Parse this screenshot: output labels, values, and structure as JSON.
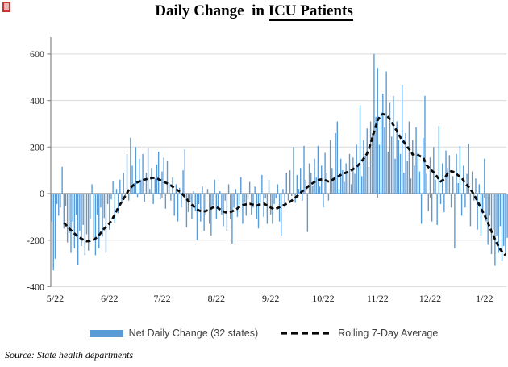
{
  "title": {
    "part1": "Daily Change  in ",
    "part2": "ICU Patients"
  },
  "source": "Source: State health departments",
  "legend": {
    "bars_label": "Net Daily Change (32 states)",
    "line_label": "Rolling 7-Day Average"
  },
  "colors": {
    "bar": "#5B9BD5",
    "line": "#0a0a0a",
    "gridline": "#D9D9D9",
    "axis": "#8e8e8e",
    "label_text": "#1a1a1a"
  },
  "chart_data": {
    "type": "bar",
    "title": "Daily Change in ICU Patients",
    "xlabel": "",
    "ylabel": "",
    "grid": true,
    "legend_position": "bottom",
    "ylim": [
      -400,
      660
    ],
    "yticks": [
      600,
      400,
      200,
      0,
      -200,
      -400
    ],
    "n_points": 260,
    "x_tick_labels": [
      "5/22",
      "6/22",
      "7/22",
      "8/22",
      "9/22",
      "10/22",
      "11/22",
      "12/22",
      "1/22"
    ],
    "x_tick_indices": [
      2,
      33,
      63,
      94,
      125,
      155,
      186,
      216,
      247
    ],
    "series": [
      {
        "name": "Net Daily Change (32 states)",
        "type": "bar",
        "values": [
          -120,
          -330,
          -280,
          -45,
          -95,
          -60,
          115,
          -150,
          -55,
          -210,
          -170,
          -255,
          -120,
          -235,
          -90,
          -305,
          -160,
          -225,
          -135,
          -265,
          -175,
          -245,
          -110,
          40,
          -205,
          -265,
          -90,
          -235,
          -60,
          -185,
          -105,
          -255,
          -45,
          -155,
          -25,
          55,
          -125,
          20,
          -85,
          60,
          -35,
          90,
          -15,
          170,
          -30,
          240,
          120,
          45,
          200,
          -15,
          150,
          60,
          170,
          -35,
          90,
          195,
          20,
          110,
          -45,
          65,
          125,
          180,
          -25,
          95,
          155,
          -65,
          140,
          45,
          -30,
          70,
          -95,
          40,
          -120,
          25,
          -60,
          100,
          190,
          -145,
          -80,
          -35,
          -110,
          10,
          -75,
          -200,
          -45,
          -120,
          30,
          -160,
          -90,
          20,
          -130,
          -180,
          -50,
          60,
          -110,
          -70,
          10,
          -90,
          -140,
          -30,
          -160,
          40,
          -110,
          -215,
          -60,
          20,
          -100,
          -50,
          70,
          -130,
          -40,
          -95,
          -25,
          50,
          -90,
          -60,
          30,
          -110,
          -150,
          -40,
          80,
          -100,
          -20,
          -130,
          60,
          -90,
          -130,
          -45,
          -20,
          40,
          -120,
          -180,
          20,
          -60,
          90,
          -30,
          100,
          -10,
          200,
          -40,
          80,
          20,
          110,
          -30,
          205,
          60,
          -165,
          130,
          90,
          35,
          150,
          70,
          205,
          30,
          120,
          -60,
          175,
          90,
          -30,
          230,
          110,
          60,
          260,
          310,
          20,
          150,
          100,
          50,
          130,
          90,
          170,
          40,
          155,
          85,
          210,
          120,
          380,
          75,
          230,
          160,
          280,
          115,
          310,
          260,
          600,
          330,
          540,
          210,
          350,
          430,
          285,
          525,
          180,
          390,
          245,
          420,
          150,
          310,
          230,
          170,
          465,
          90,
          260,
          140,
          310,
          65,
          230,
          120,
          285,
          175,
          95,
          -130,
          240,
          420,
          85,
          -75,
          155,
          -120,
          200,
          60,
          -135,
          290,
          -45,
          130,
          -80,
          185,
          110,
          165,
          -60,
          75,
          -235,
          170,
          45,
          205,
          -95,
          120,
          -60,
          85,
          215,
          -140,
          95,
          -30,
          65,
          -155,
          40,
          -180,
          -85,
          150,
          -120,
          -220,
          -95,
          -260,
          -155,
          -310,
          -180,
          -255,
          -140,
          -290,
          -225,
          -265,
          -190
        ]
      },
      {
        "name": "Rolling 7-Day Average",
        "type": "line",
        "keypoints": [
          [
            7,
            -125
          ],
          [
            10,
            -150
          ],
          [
            12,
            -165
          ],
          [
            15,
            -185
          ],
          [
            18,
            -198
          ],
          [
            20,
            -205
          ],
          [
            22,
            -203
          ],
          [
            24,
            -198
          ],
          [
            26,
            -188
          ],
          [
            28,
            -170
          ],
          [
            30,
            -150
          ],
          [
            32,
            -138
          ],
          [
            34,
            -118
          ],
          [
            36,
            -90
          ],
          [
            38,
            -60
          ],
          [
            40,
            -35
          ],
          [
            42,
            -10
          ],
          [
            44,
            15
          ],
          [
            46,
            32
          ],
          [
            48,
            45
          ],
          [
            50,
            52
          ],
          [
            53,
            60
          ],
          [
            56,
            66
          ],
          [
            58,
            68
          ],
          [
            60,
            65
          ],
          [
            62,
            58
          ],
          [
            64,
            50
          ],
          [
            66,
            44
          ],
          [
            68,
            35
          ],
          [
            70,
            24
          ],
          [
            72,
            14
          ],
          [
            74,
            4
          ],
          [
            76,
            -14
          ],
          [
            78,
            -32
          ],
          [
            80,
            -48
          ],
          [
            82,
            -62
          ],
          [
            84,
            -72
          ],
          [
            86,
            -78
          ],
          [
            88,
            -75
          ],
          [
            90,
            -68
          ],
          [
            92,
            -60
          ],
          [
            93,
            -55
          ],
          [
            95,
            -62
          ],
          [
            97,
            -72
          ],
          [
            99,
            -80
          ],
          [
            101,
            -82
          ],
          [
            103,
            -76
          ],
          [
            105,
            -70
          ],
          [
            107,
            -58
          ],
          [
            109,
            -50
          ],
          [
            111,
            -46
          ],
          [
            113,
            -44
          ],
          [
            115,
            -48
          ],
          [
            117,
            -52
          ],
          [
            119,
            -46
          ],
          [
            121,
            -42
          ],
          [
            123,
            -52
          ],
          [
            125,
            -60
          ],
          [
            127,
            -68
          ],
          [
            129,
            -62
          ],
          [
            131,
            -55
          ],
          [
            133,
            -48
          ],
          [
            135,
            -40
          ],
          [
            137,
            -30
          ],
          [
            139,
            -18
          ],
          [
            141,
            -5
          ],
          [
            143,
            10
          ],
          [
            145,
            22
          ],
          [
            147,
            35
          ],
          [
            149,
            45
          ],
          [
            151,
            55
          ],
          [
            153,
            60
          ],
          [
            155,
            62
          ],
          [
            156,
            58
          ],
          [
            158,
            52
          ],
          [
            160,
            58
          ],
          [
            162,
            68
          ],
          [
            164,
            76
          ],
          [
            166,
            85
          ],
          [
            168,
            90
          ],
          [
            170,
            95
          ],
          [
            172,
            105
          ],
          [
            174,
            115
          ],
          [
            176,
            130
          ],
          [
            178,
            150
          ],
          [
            180,
            172
          ],
          [
            182,
            215
          ],
          [
            184,
            265
          ],
          [
            186,
            315
          ],
          [
            188,
            338
          ],
          [
            189,
            342
          ],
          [
            191,
            338
          ],
          [
            193,
            320
          ],
          [
            195,
            295
          ],
          [
            197,
            268
          ],
          [
            199,
            242
          ],
          [
            201,
            222
          ],
          [
            203,
            200
          ],
          [
            205,
            182
          ],
          [
            206,
            168
          ],
          [
            208,
            172
          ],
          [
            210,
            162
          ],
          [
            212,
            155
          ],
          [
            214,
            122
          ],
          [
            216,
            105
          ],
          [
            218,
            92
          ],
          [
            220,
            72
          ],
          [
            222,
            52
          ],
          [
            224,
            62
          ],
          [
            226,
            88
          ],
          [
            228,
            96
          ],
          [
            230,
            92
          ],
          [
            232,
            78
          ],
          [
            234,
            68
          ],
          [
            236,
            45
          ],
          [
            238,
            28
          ],
          [
            240,
            8
          ],
          [
            242,
            -18
          ],
          [
            244,
            -48
          ],
          [
            246,
            -78
          ],
          [
            248,
            -108
          ],
          [
            250,
            -145
          ],
          [
            252,
            -180
          ],
          [
            254,
            -212
          ],
          [
            256,
            -240
          ],
          [
            258,
            -258
          ],
          [
            259,
            -265
          ]
        ]
      }
    ]
  }
}
